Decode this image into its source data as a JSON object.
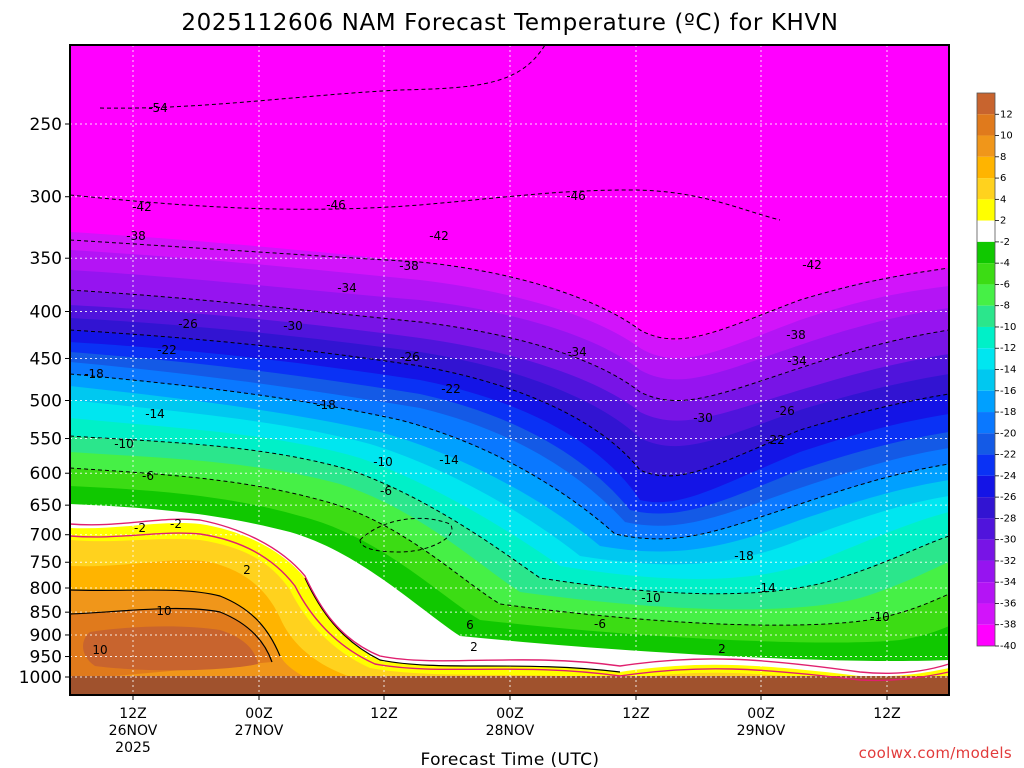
{
  "chart_data": {
    "type": "heatmap",
    "title": "2025112606 NAM Forecast Temperature (ºC) for KHVN",
    "xlabel": "Forecast Time (UTC)",
    "ylabel": "",
    "credit": "coolwx.com/models",
    "y_axis": {
      "ticks": [
        250,
        300,
        350,
        400,
        450,
        500,
        550,
        600,
        650,
        700,
        750,
        800,
        850,
        900,
        950,
        1000
      ],
      "reversed": true,
      "scale": "log"
    },
    "x_axis": {
      "ticks": [
        {
          "lines": [
            "12Z",
            "26NOV",
            "2025"
          ]
        },
        {
          "lines": [
            "00Z",
            "27NOV"
          ]
        },
        {
          "lines": [
            "12Z"
          ]
        },
        {
          "lines": [
            "00Z",
            "28NOV"
          ]
        },
        {
          "lines": [
            "12Z"
          ]
        },
        {
          "lines": [
            "00Z",
            "29NOV"
          ]
        },
        {
          "lines": [
            "12Z"
          ]
        }
      ]
    },
    "grid": true,
    "colorbar": {
      "levels": [
        12,
        10,
        8,
        6,
        4,
        2,
        -2,
        -4,
        -6,
        -8,
        -10,
        -12,
        -14,
        -16,
        -18,
        -20,
        -22,
        -24,
        -26,
        -28,
        -30,
        -32,
        -34,
        -36,
        -38,
        -40
      ],
      "colors": [
        "#c8642e",
        "#e07a1c",
        "#f0961a",
        "#ffb400",
        "#ffd21e",
        "#ffff00",
        "#ffffff",
        "#10c800",
        "#3cdc14",
        "#46f046",
        "#2be68c",
        "#00f0c8",
        "#00e6f0",
        "#00c8f0",
        "#00a0ff",
        "#0a78ff",
        "#145ae6",
        "#0a32f5",
        "#1414e6",
        "#3214d2",
        "#5014dc",
        "#7814e6",
        "#9614f0",
        "#b414f5",
        "#d214fa",
        "#ff00ff"
      ]
    },
    "contour_labels": [
      {
        "text": "-54"
      },
      {
        "text": "-46"
      },
      {
        "text": "-46"
      },
      {
        "text": "-42"
      },
      {
        "text": "-42"
      },
      {
        "text": "-42"
      },
      {
        "text": "-38"
      },
      {
        "text": "-38"
      },
      {
        "text": "-38"
      },
      {
        "text": "-34"
      },
      {
        "text": "-34"
      },
      {
        "text": "-34"
      },
      {
        "text": "-30"
      },
      {
        "text": "-30"
      },
      {
        "text": "-26"
      },
      {
        "text": "-26"
      },
      {
        "text": "-26"
      },
      {
        "text": "-22"
      },
      {
        "text": "-22"
      },
      {
        "text": "-22"
      },
      {
        "text": "-18"
      },
      {
        "text": "-18"
      },
      {
        "text": "-18"
      },
      {
        "text": "-14"
      },
      {
        "text": "-14"
      },
      {
        "text": "-14"
      },
      {
        "text": "-10"
      },
      {
        "text": "-10"
      },
      {
        "text": "-10"
      },
      {
        "text": "-10"
      },
      {
        "text": "-6"
      },
      {
        "text": "-6"
      },
      {
        "text": "-6"
      },
      {
        "text": "6"
      },
      {
        "text": "-2"
      },
      {
        "text": "2"
      },
      {
        "text": "2"
      },
      {
        "text": "2"
      },
      {
        "text": "-2"
      },
      {
        "text": "10"
      },
      {
        "text": "10"
      }
    ]
  }
}
